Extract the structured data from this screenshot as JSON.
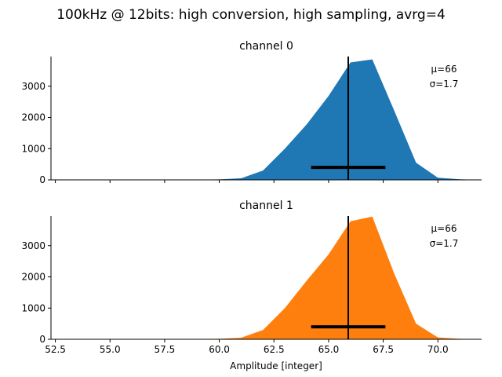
{
  "figure": {
    "suptitle": "100kHz @ 12bits: high conversion, high sampling, avrg=4",
    "xlabel": "Amplitude [integer]"
  },
  "chart_data": [
    {
      "type": "area",
      "title": "channel 0",
      "color": "#1f77b4",
      "x": [
        52,
        53,
        54,
        55,
        56,
        57,
        58,
        59,
        60,
        61,
        62,
        63,
        64,
        65,
        66,
        67,
        68,
        69,
        70,
        71,
        72
      ],
      "y": [
        0,
        0,
        0,
        5,
        5,
        3,
        5,
        10,
        15,
        50,
        300,
        1000,
        1780,
        2690,
        3760,
        3860,
        2220,
        550,
        70,
        20,
        0
      ],
      "xlim": [
        52.3,
        72
      ],
      "ylim": [
        0,
        3950
      ],
      "xticks": [
        "52.5",
        "55.0",
        "57.5",
        "60.0",
        "62.5",
        "65.0",
        "67.5",
        "70.0"
      ],
      "yticks": [
        "0",
        "1000",
        "2000",
        "3000"
      ],
      "show_xtick_labels": false,
      "mean_line_x": 65.9,
      "std_bar": {
        "x_from": 64.2,
        "x_to": 67.6,
        "y": 400
      },
      "annotation": {
        "mu": "μ=66",
        "sigma": "σ=1.7"
      }
    },
    {
      "type": "area",
      "title": "channel 1",
      "color": "#ff7f0e",
      "x": [
        52,
        53,
        54,
        55,
        56,
        57,
        58,
        59,
        60,
        61,
        62,
        63,
        64,
        65,
        66,
        67,
        68,
        69,
        70,
        71,
        72
      ],
      "y": [
        0,
        0,
        0,
        5,
        5,
        3,
        5,
        10,
        15,
        50,
        300,
        1000,
        1880,
        2720,
        3780,
        3930,
        2110,
        500,
        60,
        15,
        0
      ],
      "xlim": [
        52.3,
        72
      ],
      "ylim": [
        0,
        3950
      ],
      "xticks": [
        "52.5",
        "55.0",
        "57.5",
        "60.0",
        "62.5",
        "65.0",
        "67.5",
        "70.0"
      ],
      "yticks": [
        "0",
        "1000",
        "2000",
        "3000"
      ],
      "show_xtick_labels": true,
      "mean_line_x": 65.9,
      "std_bar": {
        "x_from": 64.2,
        "x_to": 67.6,
        "y": 400
      },
      "annotation": {
        "mu": "μ=66",
        "sigma": "σ=1.7"
      }
    }
  ]
}
